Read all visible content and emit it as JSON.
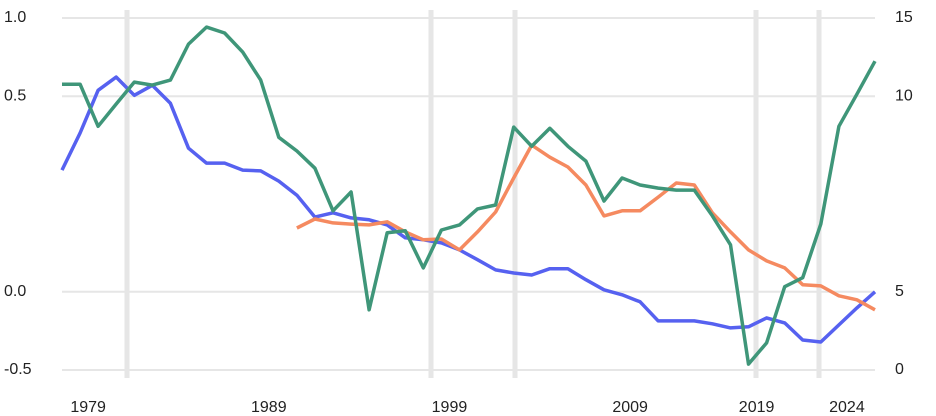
{
  "chart_data": {
    "type": "line",
    "categories": [
      null,
      null,
      "1979",
      null,
      null,
      null,
      null,
      null,
      null,
      null,
      null,
      null,
      "1989",
      null,
      null,
      null,
      null,
      null,
      null,
      null,
      null,
      null,
      "1999",
      null,
      null,
      null,
      null,
      null,
      null,
      null,
      null,
      null,
      "2009",
      null,
      null,
      null,
      null,
      null,
      null,
      "2019",
      null,
      null,
      null,
      null,
      "2024",
      null
    ],
    "ylim": [
      -0.5,
      1.0
    ],
    "yticks": [
      -0.5,
      {
        "value": 0,
        "label": "0.0"
      },
      0.5,
      {
        "value": 1,
        "label": "1.0"
      }
    ],
    "y2lim": [
      0,
      15
    ],
    "y2ticks": [
      0,
      5,
      10,
      15
    ],
    "grid": true,
    "series": [
      {
        "color": "#5661f0",
        "values": [
          0.311,
          0.406,
          0.538,
          0.622,
          0.506,
          0.57,
          0.482,
          0.367,
          0.329,
          0.329,
          0.311,
          0.309,
          0.283,
          0.247,
          0.191,
          0.202,
          0.189,
          0.184,
          0.171,
          0.138,
          0.133,
          0.125,
          0.107,
          0.082,
          0.056,
          0.048,
          0.043,
          0.059,
          0.059,
          0.031,
          0.005,
          -0.019,
          -0.064,
          -0.186,
          -0.186,
          -0.186,
          -0.205,
          -0.231,
          -0.224,
          -0.167,
          -0.199,
          -0.308,
          -0.321,
          -0.212,
          -0.103,
          0
        ]
      },
      {
        "color": "#f58a60",
        "values": [
          null,
          null,
          null,
          null,
          null,
          null,
          null,
          null,
          null,
          null,
          null,
          null,
          null,
          0.163,
          0.186,
          0.176,
          0.173,
          0.171,
          0.179,
          0.153,
          0.133,
          0.135,
          0.107,
          0.153,
          0.204,
          0.291,
          0.375,
          0.344,
          0.319,
          0.273,
          0.194,
          0.207,
          0.207,
          0.242,
          0.278,
          0.273,
          0.202,
          0.153,
          0.107,
          0.079,
          0.061,
          0.018,
          0.015,
          -0.026,
          -0.051,
          -0.115
        ]
      },
      {
        "color": "#3f9679",
        "axis": "y2",
        "values": [
          10.77,
          10.77,
          9.23,
          9.8,
          10.9,
          10.71,
          11.03,
          13.33,
          14.42,
          14.04,
          12.82,
          11.03,
          8.95,
          8.6,
          8.16,
          7.07,
          7.55,
          3.85,
          6.51,
          6.56,
          5.61,
          6.58,
          6.71,
          7.12,
          7.22,
          9.21,
          8.72,
          9.18,
          8.72,
          8.34,
          7.32,
          7.91,
          7.73,
          7.65,
          7.6,
          7.6,
          6.94,
          6.2,
          0.38,
          1.73,
          5.13,
          5.36,
          6.73,
          9.23,
          10.13,
          12.24
        ]
      }
    ]
  }
}
